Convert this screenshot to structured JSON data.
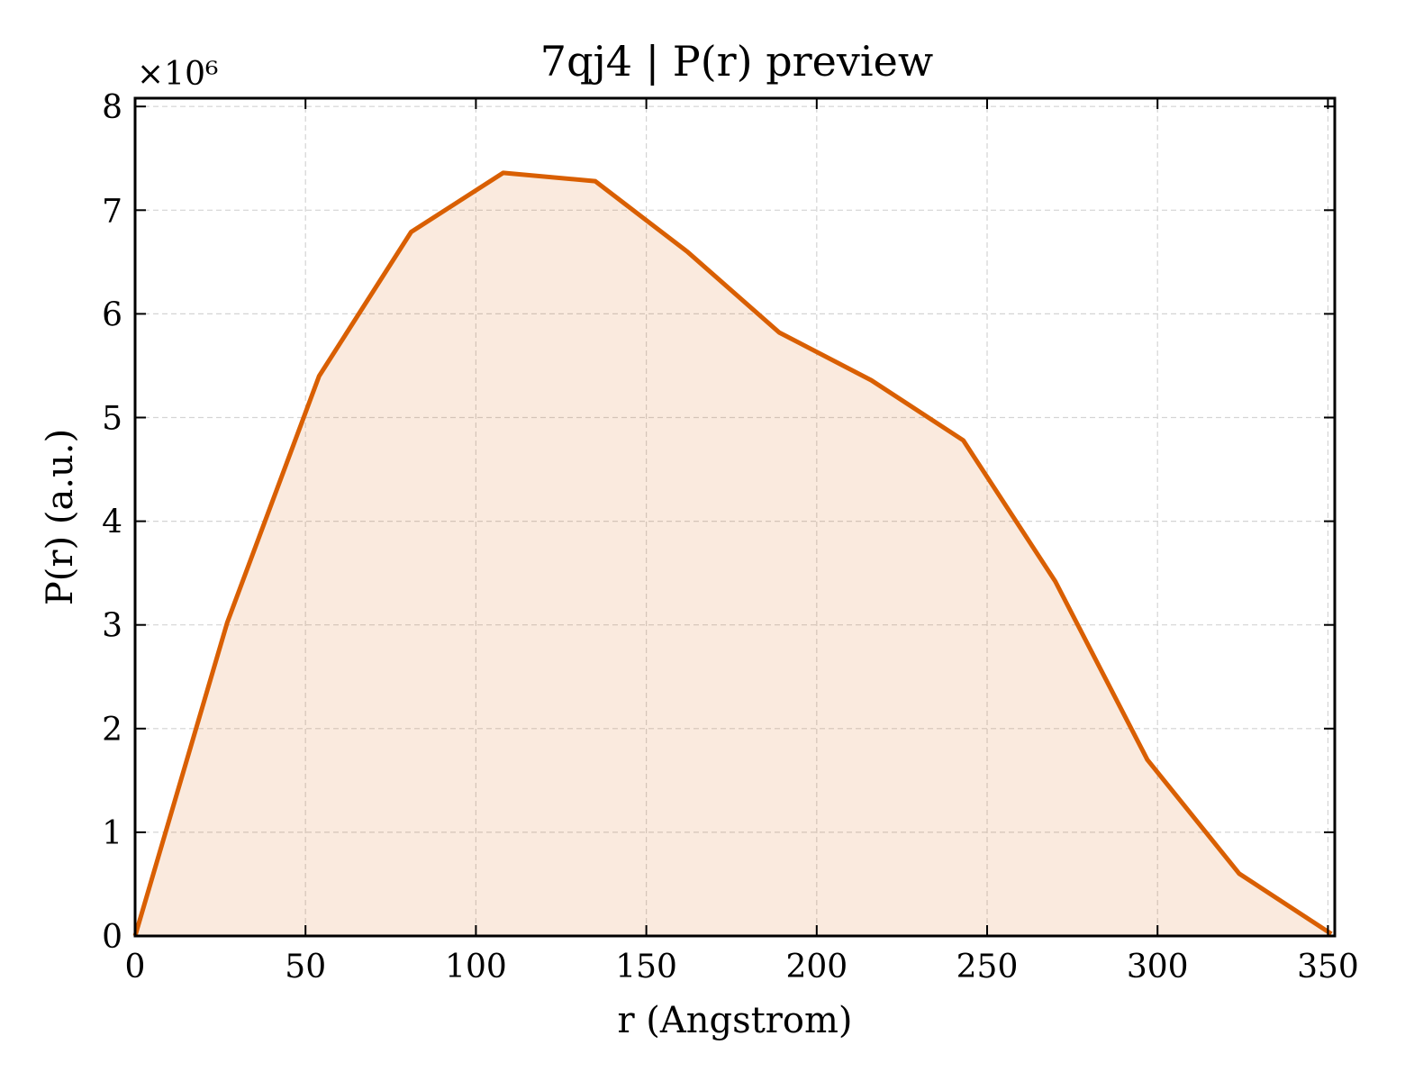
{
  "chart_data": {
    "type": "area",
    "title": "7qj4 | P(r) preview",
    "xlabel": "r (Angstrom)",
    "ylabel": "P(r) (a.u.)",
    "y_multiplier_label": "×10⁶",
    "y_scale_factor": 1000000,
    "xlim": [
      0,
      352
    ],
    "ylim": [
      0,
      8.08
    ],
    "x_ticks": [
      0,
      50,
      100,
      150,
      200,
      250,
      300,
      350
    ],
    "y_ticks": [
      0,
      1,
      2,
      3,
      4,
      5,
      6,
      7,
      8
    ],
    "grid": true,
    "series": [
      {
        "x": [
          0,
          27,
          54,
          81,
          108,
          135,
          162,
          189,
          216,
          243,
          270,
          297,
          324,
          351
        ],
        "y": [
          0,
          3.02,
          5.4,
          6.79,
          7.36,
          7.28,
          6.6,
          5.82,
          5.36,
          4.78,
          3.42,
          1.7,
          0.6,
          0.02
        ],
        "color": "#d95f02",
        "fill_color": "#d95f02",
        "fill_opacity": 0.13
      }
    ]
  }
}
